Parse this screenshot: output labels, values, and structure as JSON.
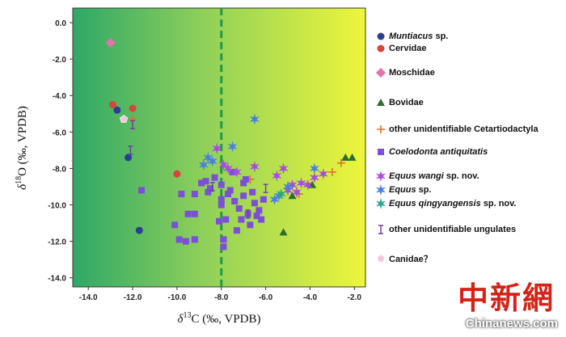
{
  "chart_data": {
    "type": "scatter",
    "xlabel_prefix": "δ",
    "xlabel_sup": "13",
    "xlabel_suffix": "C (‰, VPDB)",
    "ylabel_prefix": "δ",
    "ylabel_sup": "18",
    "ylabel_suffix": "O (‰, VPDB)",
    "xlim": [
      -14.7,
      -1.5
    ],
    "ylim": [
      -14.5,
      0.8
    ],
    "x_ticks": [
      -14.0,
      -12.0,
      -10.0,
      -8.0,
      -6.0,
      -4.0,
      -2.0
    ],
    "x_tick_labels": [
      "-14.0",
      "-12.0",
      "-10.0",
      "-8.0",
      "-6.0",
      "-4.0",
      "-2.0"
    ],
    "y_ticks": [
      0.0,
      -2.0,
      -4.0,
      -6.0,
      -8.0,
      -10.0,
      -12.0,
      -14.0
    ],
    "y_tick_labels": [
      "0.0",
      "-2.0",
      "-4.0",
      "-6.0",
      "-8.0",
      "-10.0",
      "-12.0",
      "-14.0"
    ],
    "divider_x": -8.0,
    "colors": {
      "left_green": "#2ea867",
      "right_yellow": "#eef63a",
      "divider": "#1f9a4a",
      "muntiacus": "#2b3f8f",
      "cervidae": "#d8453c",
      "moschidae": "#e472ad",
      "bovidae": "#2d6b2f",
      "cetartiodactyla": "#e0722a",
      "coelodonta": "#7b4fd8",
      "equus_wangi": "#a84be3",
      "equus": "#4a7fe0",
      "equus_qingyangensis": "#2aa88e",
      "ungulates": "#6b3fa0",
      "canidae": "#f3c8dd"
    },
    "series": [
      {
        "name": "Muntiacus sp.",
        "marker": "circle",
        "points": [
          [
            -12.7,
            -4.8
          ],
          [
            -12.2,
            -7.4
          ],
          [
            -11.7,
            -11.4
          ]
        ]
      },
      {
        "name": "Cervidae",
        "marker": "circle",
        "points": [
          [
            -12.9,
            -4.5
          ],
          [
            -12.0,
            -4.7
          ],
          [
            -10.0,
            -8.3
          ]
        ]
      },
      {
        "name": "Moschidae",
        "marker": "diamond",
        "points": [
          [
            -13.0,
            -1.1
          ]
        ]
      },
      {
        "name": "Bovidae",
        "marker": "triangle",
        "points": [
          [
            -2.4,
            -7.4
          ],
          [
            -2.1,
            -7.4
          ],
          [
            -5.2,
            -11.5
          ],
          [
            -3.9,
            -8.9
          ],
          [
            -4.8,
            -9.5
          ]
        ]
      },
      {
        "name": "other unidentifiable Cetartiodactyla",
        "marker": "plus",
        "points": [
          [
            -12.0,
            -5.3
          ],
          [
            -6.7,
            -8.6
          ],
          [
            -3.0,
            -8.2
          ],
          [
            -2.6,
            -7.7
          ],
          [
            -4.5,
            -9.4
          ]
        ]
      },
      {
        "name": "Coelodonta antiquitatis",
        "marker": "square",
        "points": [
          [
            -11.6,
            -9.2
          ],
          [
            -9.8,
            -9.4
          ],
          [
            -9.5,
            -10.5
          ],
          [
            -9.6,
            -12.0
          ],
          [
            -9.2,
            -10.5
          ],
          [
            -9.2,
            -11.9
          ],
          [
            -8.9,
            -8.8
          ],
          [
            -8.6,
            -9.3
          ],
          [
            -8.5,
            -9.1
          ],
          [
            -8.3,
            -8.5
          ],
          [
            -8.0,
            -9.7
          ],
          [
            -8.0,
            -10.0
          ],
          [
            -8.0,
            -8.9
          ],
          [
            -7.9,
            -11.9
          ],
          [
            -7.9,
            -12.3
          ],
          [
            -7.8,
            -10.8
          ],
          [
            -7.6,
            -9.2
          ],
          [
            -7.5,
            -8.2
          ],
          [
            -7.4,
            -9.8
          ],
          [
            -7.2,
            -10.2
          ],
          [
            -7.0,
            -9.5
          ],
          [
            -7.0,
            -8.8
          ],
          [
            -6.8,
            -10.5
          ],
          [
            -6.7,
            -11.1
          ],
          [
            -6.6,
            -9.3
          ],
          [
            -6.5,
            -9.9
          ],
          [
            -6.3,
            -10.3
          ],
          [
            -6.2,
            -10.8
          ],
          [
            -6.1,
            -9.7
          ],
          [
            -7.3,
            -11.4
          ],
          [
            -7.1,
            -10.8
          ],
          [
            -10.1,
            -11.1
          ],
          [
            -9.9,
            -11.9
          ],
          [
            -8.7,
            -8.7
          ],
          [
            -8.1,
            -10.9
          ],
          [
            -7.7,
            -9.4
          ],
          [
            -6.4,
            -10.6
          ],
          [
            -6.9,
            -8.6
          ],
          [
            -9.2,
            -9.4
          ]
        ]
      },
      {
        "name": "Equus wangi sp. nov.",
        "marker": "star",
        "points": [
          [
            -8.2,
            -6.9
          ],
          [
            -7.9,
            -7.8
          ],
          [
            -7.7,
            -8.0
          ],
          [
            -7.3,
            -8.2
          ],
          [
            -6.5,
            -7.9
          ],
          [
            -5.5,
            -8.4
          ],
          [
            -5.2,
            -8.0
          ],
          [
            -4.8,
            -8.9
          ],
          [
            -4.4,
            -8.8
          ],
          [
            -4.1,
            -8.9
          ],
          [
            -3.8,
            -8.5
          ],
          [
            -3.4,
            -8.3
          ],
          [
            -5.0,
            -9.2
          ],
          [
            -4.6,
            -9.3
          ]
        ]
      },
      {
        "name": "Equus sp.",
        "marker": "star",
        "points": [
          [
            -8.6,
            -7.4
          ],
          [
            -8.8,
            -7.8
          ],
          [
            -8.4,
            -7.6
          ],
          [
            -7.5,
            -6.8
          ],
          [
            -6.5,
            -5.3
          ],
          [
            -5.0,
            -9.0
          ],
          [
            -5.4,
            -9.5
          ],
          [
            -5.6,
            -9.7
          ],
          [
            -3.8,
            -8.0
          ]
        ]
      },
      {
        "name": "Equus qingyangensis sp. nov.",
        "marker": "star",
        "points": [
          [
            -5.3,
            -9.4
          ]
        ]
      },
      {
        "name": "other unidentifiable ungulates",
        "marker": "ibar",
        "points": [
          [
            -12.1,
            -7.0
          ],
          [
            -12.0,
            -5.6
          ],
          [
            -8.4,
            -9.0
          ],
          [
            -6.8,
            -10.5
          ],
          [
            -6.0,
            -9.1
          ]
        ]
      },
      {
        "name": "Canidae ?",
        "marker": "pentagon",
        "points": [
          [
            -12.4,
            -5.3
          ]
        ]
      }
    ]
  },
  "legend": [
    {
      "marker": "circle",
      "color_key": "muntiacus",
      "italic": "Muntiacus",
      "rest": " sp."
    },
    {
      "marker": "circle",
      "color_key": "cervidae",
      "italic": "",
      "rest": "Cervidae"
    },
    {
      "marker": "diamond",
      "color_key": "moschidae",
      "italic": "",
      "rest": "Moschidae"
    },
    {
      "marker": "triangle",
      "color_key": "bovidae",
      "italic": "",
      "rest": "Bovidae"
    },
    {
      "marker": "plus",
      "color_key": "cetartiodactyla",
      "italic": "",
      "rest": "other unidentifiable Cetartiodactyla"
    },
    {
      "marker": "square",
      "color_key": "coelodonta",
      "italic": "Coelodonta antiquitatis",
      "rest": ""
    },
    {
      "marker": "star",
      "color_key": "equus_wangi",
      "italic": "Equus wangi",
      "rest": " sp. nov."
    },
    {
      "marker": "star",
      "color_key": "equus",
      "italic": "Equus",
      "rest": " sp."
    },
    {
      "marker": "star",
      "color_key": "equus_qingyangensis",
      "italic": "Equus qingyangensis",
      "rest": " sp. nov."
    },
    {
      "marker": "ibar",
      "color_key": "ungulates",
      "italic": "",
      "rest": "other unidentifiable ungulates"
    },
    {
      "marker": "pentagon",
      "color_key": "canidae",
      "italic": "",
      "rest": "Canidae？"
    }
  ],
  "watermark": {
    "cn": "中新網",
    "en": "Chinanews.com"
  }
}
